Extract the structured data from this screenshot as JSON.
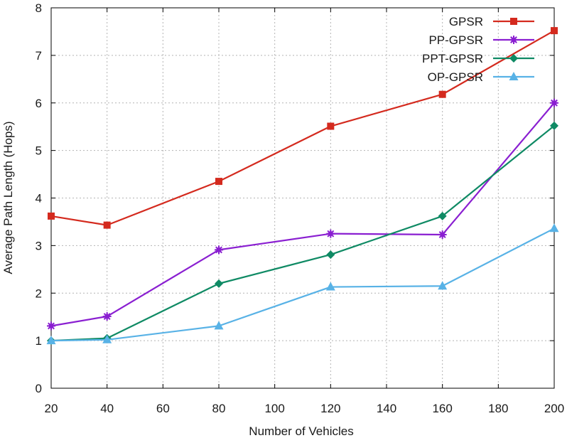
{
  "chart_data": {
    "type": "line",
    "title": "",
    "xlabel": "Number of Vehicles",
    "ylabel": "Average Path Length (Hops)",
    "xlim": [
      20,
      200
    ],
    "ylim": [
      0,
      8
    ],
    "xticks": [
      20,
      40,
      60,
      80,
      100,
      120,
      140,
      160,
      180,
      200
    ],
    "yticks": [
      0,
      1,
      2,
      3,
      4,
      5,
      6,
      7,
      8
    ],
    "grid": true,
    "legend_position": "top-right",
    "x": [
      20,
      40,
      80,
      120,
      160,
      200
    ],
    "series": [
      {
        "name": "GPSR",
        "color": "#d42a1e",
        "marker": "square",
        "values": [
          3.62,
          3.43,
          4.35,
          5.51,
          6.18,
          7.52
        ]
      },
      {
        "name": "PP-GPSR",
        "color": "#8a1fd1",
        "marker": "star",
        "values": [
          1.31,
          1.51,
          2.91,
          3.25,
          3.23,
          6.0
        ]
      },
      {
        "name": "PPT-GPSR",
        "color": "#0f8a64",
        "marker": "diamond",
        "values": [
          1.0,
          1.05,
          2.2,
          2.81,
          3.62,
          5.52
        ]
      },
      {
        "name": "OP-GPSR",
        "color": "#58b2e6",
        "marker": "triangle",
        "values": [
          1.0,
          1.02,
          1.31,
          2.13,
          2.15,
          3.36
        ]
      }
    ]
  }
}
